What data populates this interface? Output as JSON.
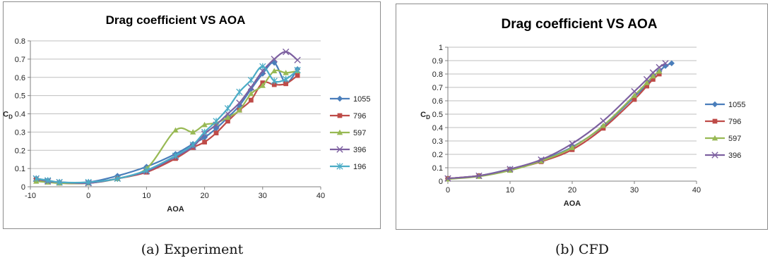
{
  "chart_data": [
    {
      "type": "line",
      "caption": "(a) Experiment",
      "title": "Drag coefficient VS AOA",
      "xlabel": "AOA",
      "ylabel": "C",
      "ylabel_sub": "D",
      "xlim": [
        -10,
        40
      ],
      "ylim": [
        0,
        0.8
      ],
      "xticks": [
        -10,
        0,
        10,
        20,
        30,
        40
      ],
      "yticks": [
        0,
        0.1,
        0.2,
        0.3,
        0.4,
        0.5,
        0.6,
        0.7,
        0.8
      ],
      "grid": true,
      "legend": "right",
      "series": [
        {
          "name": "1055",
          "color": "#4a7ebb",
          "marker": "diamond",
          "x": [
            -9,
            -7,
            -5,
            0,
            5,
            10,
            15,
            18,
            20,
            22,
            24,
            26,
            28,
            30,
            32,
            34,
            36
          ],
          "y": [
            0.045,
            0.035,
            0.025,
            0.025,
            0.06,
            0.11,
            0.18,
            0.235,
            0.27,
            0.32,
            0.38,
            0.445,
            0.535,
            0.62,
            0.68,
            0.57,
            0.645
          ]
        },
        {
          "name": "796",
          "color": "#be4b48",
          "marker": "square",
          "x": [
            -9,
            -7,
            -5,
            0,
            5,
            10,
            15,
            18,
            20,
            22,
            24,
            26,
            28,
            30,
            32,
            34,
            36
          ],
          "y": [
            0.04,
            0.03,
            0.02,
            0.02,
            0.045,
            0.08,
            0.155,
            0.215,
            0.245,
            0.295,
            0.36,
            0.42,
            0.475,
            0.57,
            0.56,
            0.565,
            0.61
          ]
        },
        {
          "name": "597",
          "color": "#98b954",
          "marker": "triangle",
          "x": [
            -9,
            -7,
            -5,
            0,
            5,
            10,
            15,
            18,
            20,
            22,
            24,
            26,
            28,
            30,
            32,
            34,
            36
          ],
          "y": [
            0.03,
            0.025,
            0.02,
            0.02,
            0.045,
            0.1,
            0.31,
            0.3,
            0.34,
            0.35,
            0.38,
            0.42,
            0.51,
            0.555,
            0.635,
            0.625,
            0.635
          ]
        },
        {
          "name": "396",
          "color": "#7d60a0",
          "marker": "x",
          "x": [
            -9,
            -7,
            -5,
            0,
            5,
            10,
            15,
            18,
            20,
            22,
            24,
            26,
            28,
            30,
            32,
            34,
            36
          ],
          "y": [
            0.045,
            0.03,
            0.025,
            0.02,
            0.045,
            0.085,
            0.165,
            0.22,
            0.29,
            0.34,
            0.4,
            0.46,
            0.545,
            0.635,
            0.7,
            0.74,
            0.695
          ]
        },
        {
          "name": "196",
          "color": "#4bacc6",
          "marker": "star",
          "x": [
            -9,
            -7,
            -5,
            0,
            5,
            10,
            15,
            18,
            20,
            22,
            24,
            26,
            28,
            30,
            32,
            34,
            36
          ],
          "y": [
            0.045,
            0.035,
            0.025,
            0.025,
            0.045,
            0.09,
            0.17,
            0.23,
            0.3,
            0.36,
            0.43,
            0.52,
            0.585,
            0.66,
            0.58,
            0.59,
            0.64
          ]
        }
      ]
    },
    {
      "type": "line",
      "caption": "(b) CFD",
      "title": "Drag coefficient VS AOA",
      "xlabel": "AOA",
      "ylabel": "C",
      "ylabel_sub": "D",
      "xlim": [
        0,
        40
      ],
      "ylim": [
        0,
        1
      ],
      "xticks": [
        0,
        10,
        20,
        30,
        40
      ],
      "yticks": [
        0,
        0.1,
        0.2,
        0.3,
        0.4,
        0.5,
        0.6,
        0.7,
        0.8,
        0.9,
        1
      ],
      "grid": true,
      "legend": "right",
      "series": [
        {
          "name": "1055",
          "color": "#4a7ebb",
          "marker": "diamond",
          "x": [
            0,
            5,
            10,
            15,
            20,
            25,
            30,
            32,
            33,
            34,
            35,
            36
          ],
          "y": [
            0.02,
            0.04,
            0.09,
            0.155,
            0.255,
            0.41,
            0.63,
            0.72,
            0.78,
            0.82,
            0.86,
            0.88
          ]
        },
        {
          "name": "796",
          "color": "#be4b48",
          "marker": "square",
          "x": [
            0,
            5,
            10,
            15,
            20,
            25,
            30,
            32,
            33,
            34
          ],
          "y": [
            0.02,
            0.04,
            0.085,
            0.145,
            0.235,
            0.395,
            0.61,
            0.71,
            0.76,
            0.8
          ]
        },
        {
          "name": "597",
          "color": "#98b954",
          "marker": "triangle",
          "x": [
            0,
            5,
            10,
            15,
            20,
            25,
            30,
            32,
            33,
            34
          ],
          "y": [
            0.015,
            0.035,
            0.08,
            0.15,
            0.25,
            0.415,
            0.64,
            0.735,
            0.785,
            0.82
          ]
        },
        {
          "name": "396",
          "color": "#7d60a0",
          "marker": "x",
          "x": [
            0,
            5,
            10,
            15,
            20,
            25,
            30,
            32,
            33,
            34,
            35
          ],
          "y": [
            0.02,
            0.04,
            0.09,
            0.16,
            0.28,
            0.45,
            0.67,
            0.76,
            0.81,
            0.85,
            0.88
          ]
        }
      ]
    }
  ]
}
